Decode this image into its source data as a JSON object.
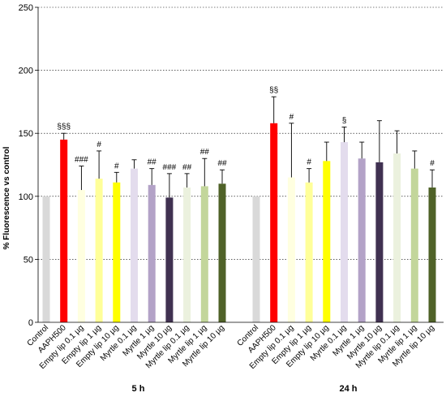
{
  "chart_data": {
    "type": "bar",
    "ylabel": "% Fluorescence vs control",
    "ylim": [
      0,
      250
    ],
    "yticks": [
      0,
      50,
      100,
      150,
      200,
      250
    ],
    "grid": true,
    "categories": [
      "Control",
      "AAPH500",
      "Empty lip 0.1 µg",
      "Empty lip 1 µg",
      "Empty lip 10 µg",
      "Myrtle 0.1 µg",
      "Myrtle 1 µg",
      "Myrtle 10 µg",
      "Myrtle lip 0.1 µg",
      "Myrtle lip 1 µg",
      "Myrtle lip 10 µg"
    ],
    "colors": [
      "#d9d9d9",
      "#ff0000",
      "#ffffe0",
      "#ffff99",
      "#ffff00",
      "#e3dced",
      "#b3a2c7",
      "#403151",
      "#ebf1de",
      "#c3d69b",
      "#4f6228"
    ],
    "groups": [
      {
        "label": "5 h",
        "values": [
          100,
          145,
          105,
          114,
          111,
          122,
          109,
          99,
          107,
          108,
          110
        ],
        "errors": [
          0,
          5,
          19,
          22,
          8,
          7,
          13,
          19,
          11,
          22,
          11
        ],
        "annotations": [
          "",
          "§§§",
          "###",
          "#",
          "#",
          "",
          "##",
          "###",
          "##",
          "##",
          "##"
        ]
      },
      {
        "label": "24 h",
        "values": [
          100,
          158,
          115,
          111,
          128,
          143,
          130,
          127,
          134,
          122,
          107
        ],
        "errors": [
          0,
          21,
          43,
          11,
          15,
          12,
          13,
          33,
          18,
          14,
          14
        ],
        "annotations": [
          "",
          "§§",
          "#",
          "#",
          "",
          "§",
          "",
          "",
          "",
          "",
          "#"
        ]
      }
    ]
  }
}
